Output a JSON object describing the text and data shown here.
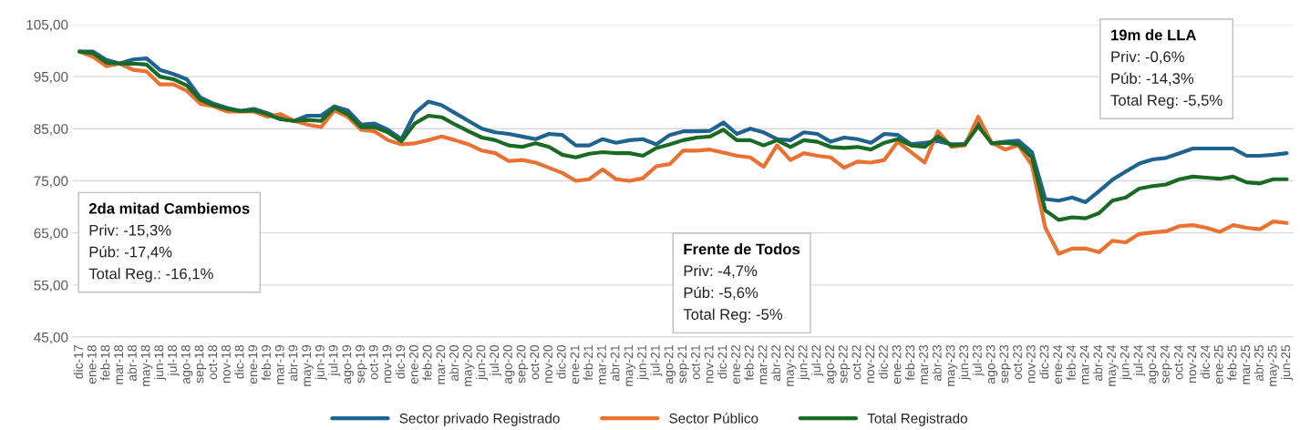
{
  "chart_data": {
    "type": "line",
    "categories": [
      "dic-17",
      "ene-18",
      "feb-18",
      "mar-18",
      "abr-18",
      "may-18",
      "jun-18",
      "jul-18",
      "ago-18",
      "sep-18",
      "oct-18",
      "nov-18",
      "dic-18",
      "ene-19",
      "feb-19",
      "mar-19",
      "abr-19",
      "may-19",
      "jun-19",
      "jul-19",
      "ago-19",
      "sep-19",
      "oct-19",
      "nov-19",
      "dic-19",
      "ene-20",
      "feb-20",
      "mar-20",
      "abr-20",
      "may-20",
      "jun-20",
      "jul-20",
      "ago-20",
      "sep-20",
      "oct-20",
      "nov-20",
      "dic-20",
      "ene-21",
      "feb-21",
      "mar-21",
      "abr-21",
      "may-21",
      "jun-21",
      "jul-21",
      "ago-21",
      "sep-21",
      "oct-21",
      "nov-21",
      "dic-21",
      "ene-22",
      "feb-22",
      "mar-22",
      "abr-22",
      "may-22",
      "jun-22",
      "jul-22",
      "ago-22",
      "sep-22",
      "oct-22",
      "nov-22",
      "dic-22",
      "ene-23",
      "feb-23",
      "mar-23",
      "abr-23",
      "may-23",
      "jun-23",
      "jul-23",
      "ago-23",
      "sep-23",
      "oct-23",
      "nov-23",
      "dic-23",
      "ene-24",
      "feb-24",
      "mar-24",
      "abr-24",
      "may-24",
      "jun-24",
      "jul-24",
      "ago-24",
      "sep-24",
      "oct-24",
      "nov-24",
      "dic-24",
      "ene-25",
      "feb-25",
      "mar-25",
      "abr-25",
      "may-25",
      "jun-25"
    ],
    "series": [
      {
        "name": "Sector privado Registrado",
        "color": "#1f6391",
        "values": [
          99.8,
          99.8,
          98.2,
          97.5,
          98.3,
          98.5,
          96.3,
          95.5,
          94.5,
          91.0,
          89.8,
          89.0,
          88.4,
          88.8,
          88.0,
          87.0,
          86.5,
          87.5,
          87.5,
          89.3,
          88.5,
          85.8,
          86.0,
          84.8,
          83.0,
          88.0,
          90.2,
          89.5,
          88.0,
          86.5,
          85.0,
          84.3,
          84.0,
          83.5,
          83.0,
          84.0,
          83.8,
          81.8,
          81.8,
          83.0,
          82.3,
          82.8,
          83.0,
          82.0,
          83.8,
          84.5,
          84.5,
          84.6,
          86.2,
          84.0,
          85.0,
          84.3,
          83.0,
          82.8,
          84.3,
          84.0,
          82.5,
          83.3,
          83.0,
          82.3,
          84.0,
          83.8,
          82.0,
          82.3,
          82.6,
          82.0,
          82.0,
          86.0,
          82.2,
          82.5,
          82.7,
          80.5,
          71.5,
          71.2,
          71.8,
          70.9,
          73.0,
          75.2,
          76.8,
          78.3,
          79.1,
          79.4,
          80.3,
          81.2,
          81.2,
          81.2,
          81.2,
          79.8,
          79.8,
          80.0,
          80.3
        ]
      },
      {
        "name": "Sector Público",
        "color": "#e97132",
        "values": [
          99.8,
          98.8,
          97.0,
          97.5,
          96.3,
          96.0,
          93.5,
          93.5,
          92.3,
          89.8,
          89.3,
          88.3,
          88.3,
          88.3,
          87.3,
          87.8,
          86.5,
          85.8,
          85.3,
          88.5,
          87.3,
          84.8,
          84.5,
          82.8,
          82.0,
          82.2,
          82.8,
          83.5,
          82.8,
          82.0,
          80.8,
          80.3,
          78.8,
          79.0,
          78.5,
          77.5,
          76.5,
          75.0,
          75.3,
          77.2,
          75.3,
          75.0,
          75.5,
          77.8,
          78.2,
          80.8,
          80.8,
          81.0,
          80.4,
          79.8,
          79.5,
          77.7,
          81.8,
          79.0,
          80.3,
          79.8,
          79.5,
          77.5,
          78.7,
          78.5,
          79.0,
          82.5,
          80.5,
          78.5,
          84.5,
          81.5,
          81.8,
          87.3,
          82.3,
          81.0,
          81.8,
          78.0,
          66.0,
          61.0,
          62.0,
          62.0,
          61.3,
          63.5,
          63.2,
          64.8,
          65.1,
          65.3,
          66.3,
          66.5,
          66.0,
          65.2,
          66.5,
          66.0,
          65.7,
          67.2,
          66.9
        ]
      },
      {
        "name": "Total Registrado",
        "color": "#196b24",
        "values": [
          99.8,
          99.5,
          97.7,
          97.5,
          97.5,
          97.3,
          95.0,
          94.5,
          93.3,
          90.6,
          89.5,
          88.8,
          88.4,
          88.5,
          87.8,
          86.8,
          86.5,
          86.7,
          86.5,
          89.0,
          87.8,
          85.3,
          85.3,
          84.3,
          82.6,
          86.0,
          87.5,
          87.2,
          85.8,
          84.5,
          83.3,
          82.8,
          81.8,
          81.5,
          82.2,
          81.5,
          80.0,
          79.5,
          80.2,
          80.5,
          80.3,
          80.3,
          79.8,
          81.3,
          82.0,
          82.8,
          83.3,
          83.5,
          84.8,
          82.8,
          82.8,
          81.8,
          82.8,
          81.5,
          82.8,
          82.5,
          81.5,
          81.3,
          81.5,
          81.0,
          82.3,
          83.0,
          81.8,
          81.5,
          83.5,
          81.8,
          82.0,
          85.5,
          82.2,
          82.3,
          82.0,
          79.5,
          69.3,
          67.5,
          68.0,
          67.8,
          68.8,
          71.2,
          71.8,
          73.5,
          74.0,
          74.3,
          75.3,
          75.8,
          75.6,
          75.4,
          75.8,
          74.7,
          74.5,
          75.3,
          75.3
        ]
      }
    ],
    "ylim": [
      45,
      105
    ],
    "yticks": [
      {
        "value": 45,
        "label": "45,00"
      },
      {
        "value": 55,
        "label": "55,00"
      },
      {
        "value": 65,
        "label": "65,00"
      },
      {
        "value": 75,
        "label": "75,00"
      },
      {
        "value": 85,
        "label": "85,00"
      },
      {
        "value": 95,
        "label": "95,00"
      },
      {
        "value": 105,
        "label": "105,00"
      }
    ],
    "grid": "y",
    "legend": "bottom",
    "marker": "none",
    "line_style": "solid",
    "annotations": [
      "2da mitad Cambiemos\nPriv: -15,3%\nPúb: -17,4%\nTotal Reg.: -16,1%",
      "Frente de Todos\nPriv: -4,7%\nPúb: -5,6%\nTotal Reg: -5%",
      "19m de LLA\nPriv: -0,6%\nPúb: -14,3%\nTotal Reg: -5,5%"
    ]
  }
}
